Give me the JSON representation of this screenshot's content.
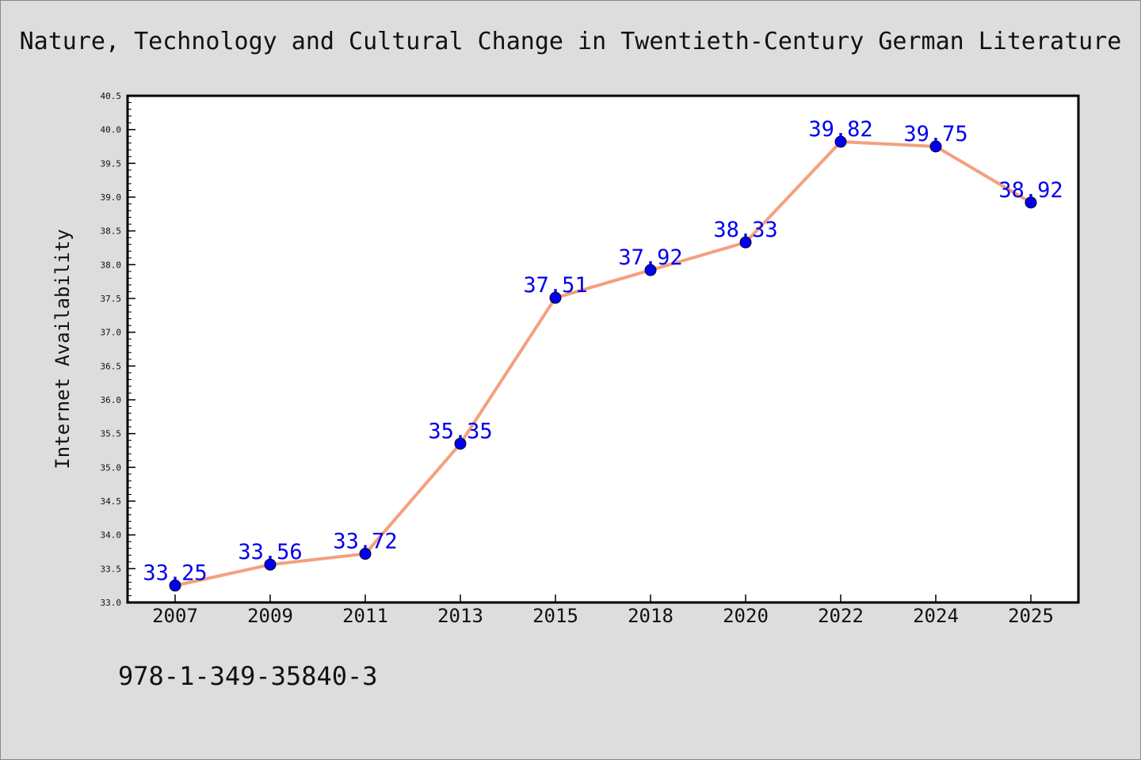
{
  "chart_data": {
    "type": "line",
    "title": "Nature, Technology and Cultural Change in Twentieth-Century German Literature",
    "xlabel": "",
    "ylabel": "Internet Availability",
    "categories": [
      "2007",
      "2009",
      "2011",
      "2013",
      "2015",
      "2018",
      "2020",
      "2022",
      "2024",
      "2025"
    ],
    "series": [
      {
        "values": [
          33.25,
          33.56,
          33.72,
          35.35,
          37.51,
          37.92,
          38.33,
          39.82,
          39.75,
          38.92
        ]
      }
    ],
    "data_labels": [
      "33.25",
      "33.56",
      "33.72",
      "35.35",
      "37.51",
      "37.92",
      "38.33",
      "39.82",
      "39.75",
      "38.92"
    ],
    "ylim": [
      33.0,
      40.5
    ],
    "y_ticks": [
      "33.0",
      "33.5",
      "34.0",
      "34.5",
      "35.0",
      "35.5",
      "36.0",
      "36.5",
      "37.0",
      "37.5",
      "38.0",
      "38.5",
      "39.0",
      "39.5",
      "40.0",
      "40.5"
    ],
    "grid": false,
    "legend": "none",
    "colors": {
      "line": "#f4a07e",
      "marker": "#0000ee",
      "label": "#0000ee",
      "background": "#dddddd",
      "plot_background": "#ffffff"
    }
  },
  "footer": {
    "isbn": "978-1-349-35840-3"
  }
}
